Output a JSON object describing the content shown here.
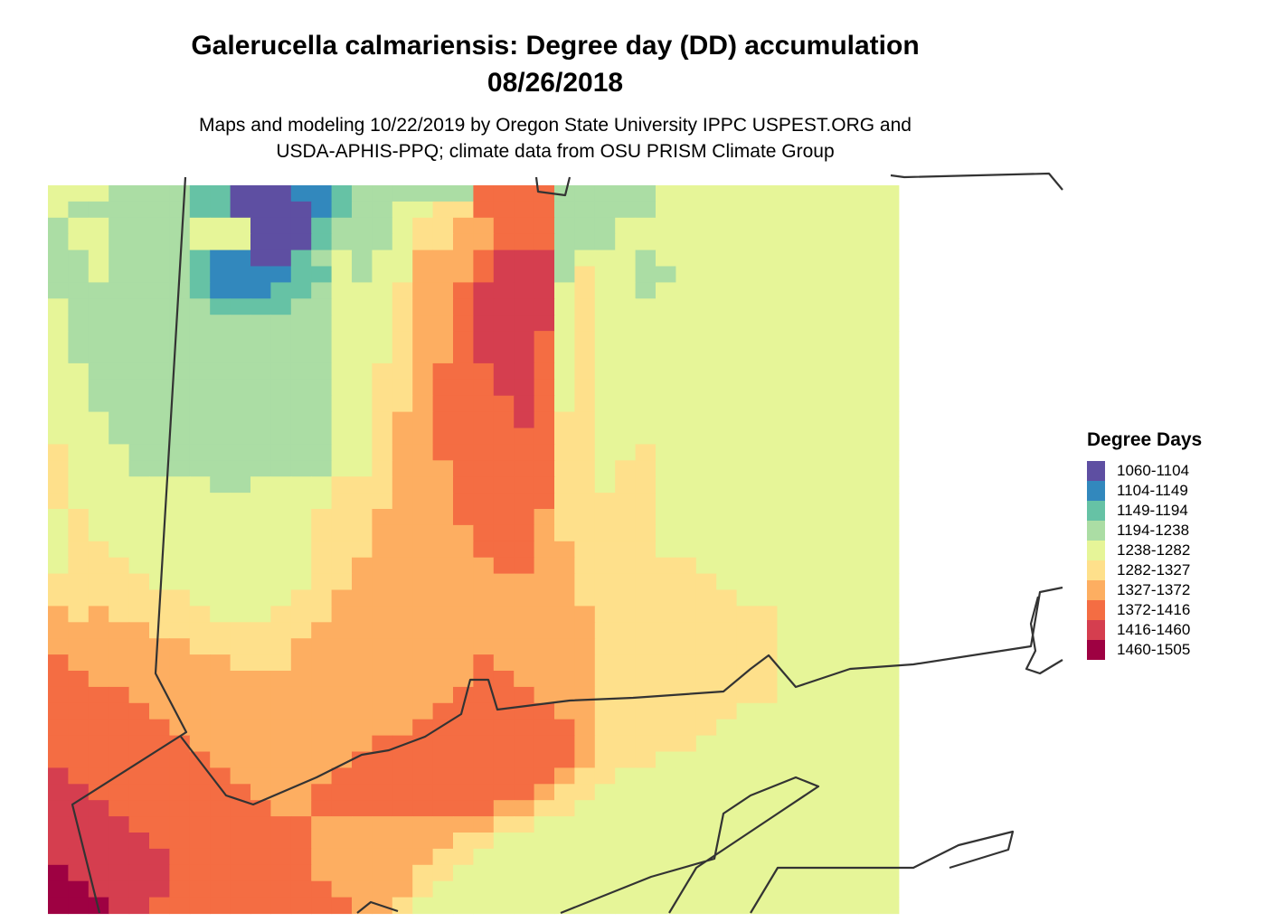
{
  "header": {
    "title_line1": "Galerucella calmariensis: Degree day (DD) accumulation",
    "title_line2": "08/26/2018",
    "subtitle_line1": "Maps and modeling 10/22/2019 by Oregon State University IPPC USPEST.ORG and",
    "subtitle_line2": "USDA-APHIS-PPQ; climate data from OSU PRISM Climate Group"
  },
  "legend": {
    "title": "Degree Days",
    "items": [
      {
        "label": "1060-1104",
        "color": "#5e4fa2"
      },
      {
        "label": "1104-1149",
        "color": "#3288bd"
      },
      {
        "label": "1149-1194",
        "color": "#66c2a5"
      },
      {
        "label": "1194-1238",
        "color": "#abdda4"
      },
      {
        "label": "1238-1282",
        "color": "#e6f598"
      },
      {
        "label": "1282-1327",
        "color": "#fee08b"
      },
      {
        "label": "1327-1372",
        "color": "#fdae61"
      },
      {
        "label": "1372-1416",
        "color": "#f46d43"
      },
      {
        "label": "1416-1460",
        "color": "#d53e4f"
      },
      {
        "label": "1460-1505",
        "color": "#9e0142"
      }
    ]
  },
  "map": {
    "grid": [
      "444333322000112333333777733333444444444444",
      "433333322000012334455777733333444444444444",
      "344333344400023334556677733344444444444444",
      "344333344400023334556677733344444444444444",
      "334333321100234344666788834443444444444444",
      "334333321111224344666788835443344444444444",
      "333333321112234445667888845443444444444444",
      "433333332222334445667888845444444444444444",
      "433333333333334445667888845444444444444444",
      "433333333333334445667888745444444444444444",
      "433333333333334445667888745444444444444444",
      "443333333333334455677788745444444444444444",
      "443333333333334455677788745444444444444444",
      "443333333333334455677778745444444444444444",
      "444333333333334456677778755444444444444444",
      "444333333333334456677777755444444444444444",
      "544433333333334456677777755445444444444444",
      "544433333333334456667777755455444444444444",
      "544444443344445556667777755455444444444444",
      "544444444444445556667777755555444444444444",
      "454444444444455566667777655555444444444444",
      "454444444444455566666777655555444444444444",
      "455444444444455566666777665555444444444444",
      "455544444444455666666677665555554444444444",
      "555554444444455666666666665555555444444444",
      "555555544444556666666666665555555544444444",
      "656555554445556666666666666555555555444444",
      "666665555555566666666666666555555555444444",
      "666666655555666666666666666555555555444444",
      "766666666555666666666766666555555555444444",
      "776666666666666666666776666555555555444444",
      "777766666666666666667777666555555555444444",
      "777776666666666666677777766555555544444444",
      "777777666666666666777777776555555444444444",
      "777777766666666677777777776555554444444444",
      "777777776666666777777777776555444444444444",
      "877777777666667777777777765544444444444444",
      "887777777766677777777777655444444444444444",
      "888777777776677777777766554444444444444444",
      "888877777777766666666655444444444444444444",
      "888887777777766666665544444444444444444444",
      "888888777777766666655444444444444444444444",
      "988888777777766666554444444444444444444444",
      "998888777777776666544444444444444444444444",
      "999887777777777665444444444444444444444444"
    ]
  }
}
